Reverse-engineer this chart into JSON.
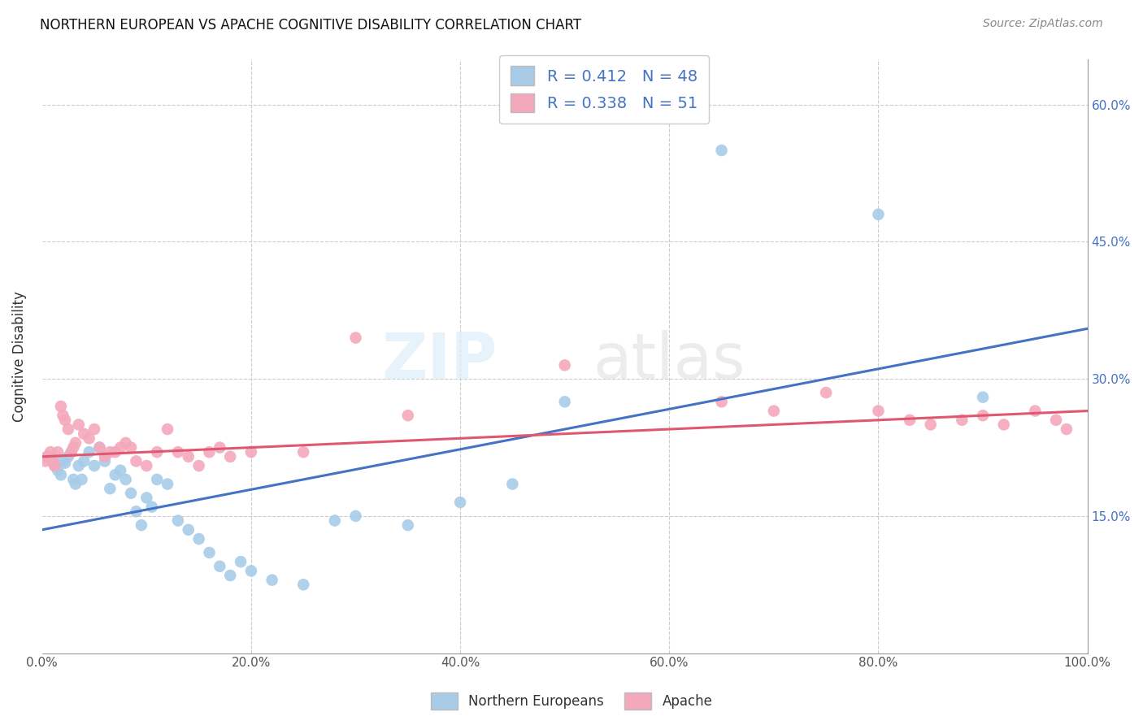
{
  "title": "NORTHERN EUROPEAN VS APACHE COGNITIVE DISABILITY CORRELATION CHART",
  "source": "Source: ZipAtlas.com",
  "ylabel_label": "Cognitive Disability",
  "blue_R": 0.412,
  "blue_N": 48,
  "pink_R": 0.338,
  "pink_N": 51,
  "blue_color": "#a8cce8",
  "pink_color": "#f4a8bb",
  "blue_line_color": "#4472c4",
  "pink_line_color": "#e05870",
  "legend_text_color": "#4472c4",
  "blue_scatter_x": [
    0.5,
    1.0,
    1.2,
    1.5,
    1.8,
    2.0,
    2.2,
    2.5,
    2.8,
    3.0,
    3.2,
    3.5,
    3.8,
    4.0,
    4.5,
    5.0,
    5.5,
    6.0,
    6.5,
    7.0,
    7.5,
    8.0,
    8.5,
    9.0,
    9.5,
    10.0,
    10.5,
    11.0,
    12.0,
    13.0,
    14.0,
    15.0,
    16.0,
    17.0,
    18.0,
    19.0,
    20.0,
    22.0,
    25.0,
    28.0,
    30.0,
    35.0,
    40.0,
    45.0,
    50.0,
    65.0,
    80.0,
    90.0
  ],
  "blue_scatter_y": [
    21.5,
    21.0,
    20.5,
    20.0,
    19.5,
    21.0,
    20.8,
    21.5,
    22.0,
    19.0,
    18.5,
    20.5,
    19.0,
    21.0,
    22.0,
    20.5,
    22.5,
    21.0,
    18.0,
    19.5,
    20.0,
    19.0,
    17.5,
    15.5,
    14.0,
    17.0,
    16.0,
    19.0,
    18.5,
    14.5,
    13.5,
    12.5,
    11.0,
    9.5,
    8.5,
    10.0,
    9.0,
    8.0,
    7.5,
    14.5,
    15.0,
    14.0,
    16.5,
    18.5,
    27.5,
    55.0,
    48.0,
    28.0
  ],
  "pink_scatter_x": [
    0.3,
    0.5,
    0.8,
    1.0,
    1.2,
    1.5,
    1.8,
    2.0,
    2.2,
    2.5,
    2.8,
    3.0,
    3.2,
    3.5,
    4.0,
    4.5,
    5.0,
    5.5,
    6.0,
    6.5,
    7.0,
    7.5,
    8.0,
    8.5,
    9.0,
    10.0,
    11.0,
    12.0,
    13.0,
    14.0,
    15.0,
    16.0,
    17.0,
    18.0,
    20.0,
    25.0,
    30.0,
    35.0,
    65.0,
    70.0,
    75.0,
    80.0,
    83.0,
    85.0,
    88.0,
    90.0,
    92.0,
    95.0,
    97.0,
    98.0,
    50.0
  ],
  "pink_scatter_y": [
    21.0,
    21.5,
    22.0,
    21.0,
    20.5,
    22.0,
    27.0,
    26.0,
    25.5,
    24.5,
    22.0,
    22.5,
    23.0,
    25.0,
    24.0,
    23.5,
    24.5,
    22.5,
    21.5,
    22.0,
    22.0,
    22.5,
    23.0,
    22.5,
    21.0,
    20.5,
    22.0,
    24.5,
    22.0,
    21.5,
    20.5,
    22.0,
    22.5,
    21.5,
    22.0,
    22.0,
    34.5,
    26.0,
    27.5,
    26.5,
    28.5,
    26.5,
    25.5,
    25.0,
    25.5,
    26.0,
    25.0,
    26.5,
    25.5,
    24.5,
    31.5
  ],
  "blue_line_x0": 0,
  "blue_line_y0": 13.5,
  "blue_line_x1": 100,
  "blue_line_y1": 35.5,
  "pink_line_x0": 0,
  "pink_line_y0": 21.5,
  "pink_line_x1": 100,
  "pink_line_y1": 26.5,
  "xlim": [
    0,
    100
  ],
  "ylim": [
    0,
    65
  ],
  "x_ticks": [
    0,
    20,
    40,
    60,
    80,
    100
  ],
  "y_ticks": [
    15,
    30,
    45,
    60
  ],
  "grid_color": "#cccccc",
  "background_color": "#ffffff",
  "title_fontsize": 12,
  "tick_fontsize": 11,
  "legend_fontsize": 14
}
